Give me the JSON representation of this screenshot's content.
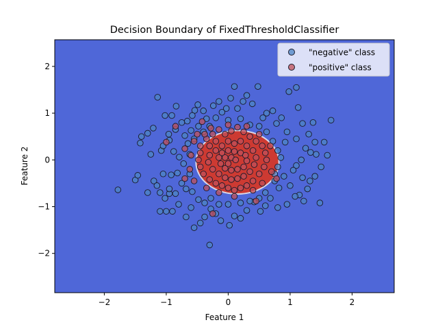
{
  "chart_data": {
    "type": "scatter",
    "title": "Decision Boundary of FixedThresholdClassifier",
    "xlabel": "Feature 1",
    "ylabel": "Feature 2",
    "xlim": [
      -2.8,
      2.68
    ],
    "ylim": [
      -2.84,
      2.57
    ],
    "xticks": [
      -2,
      -1,
      0,
      1,
      2
    ],
    "yticks": [
      -2,
      -1,
      0,
      1,
      2
    ],
    "xtick_labels": [
      "−2",
      "−1",
      "0",
      "1",
      "2"
    ],
    "ytick_labels": [
      "−2",
      "−1",
      "0",
      "1",
      "2"
    ],
    "grid": false,
    "legend_position": "top-right",
    "decision_region": {
      "shape": "ellipse",
      "center": [
        0.15,
        -0.05
      ],
      "radii": [
        0.67,
        0.68
      ],
      "inside_class": "positive",
      "inside_color": "#cd3a32",
      "outside_color": "#4f67d8",
      "boundary_color": "#d8d8e8"
    },
    "series": [
      {
        "name": "\"negative\" class",
        "color": "#4c84c4",
        "edge_color": "#1a1a2a",
        "points": [
          [
            -1.78,
            -0.64
          ],
          [
            -1.5,
            -0.43
          ],
          [
            -1.46,
            -0.33
          ],
          [
            -1.42,
            0.36
          ],
          [
            -1.4,
            0.5
          ],
          [
            -1.3,
            0.57
          ],
          [
            -1.21,
            0.68
          ],
          [
            -1.14,
            1.34
          ],
          [
            -1.08,
            0.2
          ],
          [
            -1.02,
            0.95
          ],
          [
            -0.96,
            0.55
          ],
          [
            -0.91,
            0.95
          ],
          [
            -0.84,
            1.15
          ],
          [
            -0.88,
            0.18
          ],
          [
            -0.79,
            0.06
          ],
          [
            -0.7,
            0.52
          ],
          [
            -0.66,
            0.83
          ],
          [
            -0.6,
            0.63
          ],
          [
            -0.54,
            1.06
          ],
          [
            -0.49,
            1.18
          ],
          [
            -0.4,
            1.05
          ],
          [
            -0.35,
            0.88
          ],
          [
            -0.3,
            0.72
          ],
          [
            -0.24,
            1.16
          ],
          [
            -0.15,
            1.25
          ],
          [
            -0.1,
            1.02
          ],
          [
            -0.03,
            1.1
          ],
          [
            0.04,
            1.32
          ],
          [
            0.1,
            1.57
          ],
          [
            0.15,
            1.1
          ],
          [
            0.24,
            1.25
          ],
          [
            0.3,
            1.38
          ],
          [
            0.39,
            1.2
          ],
          [
            0.48,
            1.57
          ],
          [
            0.56,
            0.9
          ],
          [
            0.62,
            1.0
          ],
          [
            0.72,
            1.05
          ],
          [
            0.78,
            0.78
          ],
          [
            0.86,
            0.9
          ],
          [
            0.95,
            0.6
          ],
          [
            0.98,
            1.46
          ],
          [
            1.1,
            1.55
          ],
          [
            1.13,
            1.12
          ],
          [
            1.2,
            0.78
          ],
          [
            1.3,
            0.55
          ],
          [
            1.37,
            0.8
          ],
          [
            1.4,
            0.38
          ],
          [
            1.55,
            0.38
          ],
          [
            1.66,
            0.85
          ],
          [
            1.42,
            0.12
          ],
          [
            1.33,
            0.16
          ],
          [
            1.25,
            0.25
          ],
          [
            1.18,
            0.0
          ],
          [
            1.1,
            -0.12
          ],
          [
            1.05,
            -0.22
          ],
          [
            1.2,
            -0.38
          ],
          [
            1.32,
            -0.45
          ],
          [
            1.4,
            -0.35
          ],
          [
            1.28,
            -0.62
          ],
          [
            1.15,
            -0.75
          ],
          [
            1.0,
            -0.55
          ],
          [
            0.9,
            -0.35
          ],
          [
            0.82,
            -0.6
          ],
          [
            0.75,
            -0.45
          ],
          [
            1.48,
            -0.92
          ],
          [
            1.08,
            -0.78
          ],
          [
            0.95,
            -0.95
          ],
          [
            0.8,
            -1.02
          ],
          [
            0.68,
            -0.82
          ],
          [
            0.6,
            -0.98
          ],
          [
            0.52,
            -1.1
          ],
          [
            0.42,
            -0.9
          ],
          [
            0.3,
            -1.08
          ],
          [
            0.2,
            -1.25
          ],
          [
            0.1,
            -1.2
          ],
          [
            0.02,
            -1.4
          ],
          [
            -0.12,
            -1.3
          ],
          [
            -0.2,
            -1.15
          ],
          [
            -0.28,
            -1.05
          ],
          [
            -0.3,
            -1.82
          ],
          [
            -0.38,
            -1.22
          ],
          [
            -0.45,
            -1.35
          ],
          [
            -0.55,
            -1.45
          ],
          [
            -0.6,
            -1.02
          ],
          [
            -0.68,
            -1.22
          ],
          [
            -0.8,
            -0.95
          ],
          [
            -0.85,
            -0.72
          ],
          [
            -0.95,
            -0.72
          ],
          [
            -1.02,
            -0.82
          ],
          [
            -1.1,
            -0.7
          ],
          [
            -1.2,
            -0.45
          ],
          [
            -1.15,
            -0.55
          ],
          [
            -1.1,
            -1.1
          ],
          [
            -1.0,
            -1.1
          ],
          [
            -0.9,
            -1.1
          ],
          [
            -0.95,
            -0.62
          ],
          [
            -1.05,
            -0.3
          ],
          [
            -0.92,
            -0.32
          ],
          [
            -0.82,
            -0.28
          ],
          [
            -0.75,
            -0.5
          ],
          [
            -0.68,
            -0.62
          ],
          [
            -0.58,
            -0.68
          ],
          [
            -0.48,
            -0.85
          ],
          [
            -0.38,
            -0.92
          ],
          [
            -0.28,
            -0.82
          ],
          [
            -1.05,
            0.3
          ],
          [
            -0.95,
            0.42
          ],
          [
            -0.85,
            0.65
          ],
          [
            -0.75,
            0.8
          ],
          [
            -0.65,
            0.35
          ],
          [
            -0.55,
            0.45
          ],
          [
            -0.48,
            0.72
          ],
          [
            -0.4,
            0.6
          ],
          [
            -0.2,
            0.9
          ],
          [
            0.0,
            0.85
          ],
          [
            0.2,
            0.88
          ],
          [
            0.35,
            0.75
          ],
          [
            0.5,
            0.72
          ],
          [
            0.62,
            0.6
          ],
          [
            0.72,
            0.4
          ],
          [
            0.8,
            0.2
          ],
          [
            0.85,
            0.05
          ],
          [
            0.8,
            -0.15
          ],
          [
            0.75,
            -0.3
          ],
          [
            0.6,
            -0.7
          ],
          [
            0.5,
            -0.82
          ],
          [
            0.35,
            -0.88
          ],
          [
            0.2,
            -0.92
          ],
          [
            0.0,
            -0.95
          ],
          [
            -0.15,
            -0.95
          ],
          [
            -0.62,
            0.12
          ],
          [
            -0.72,
            -0.08
          ],
          [
            -0.62,
            -0.3
          ],
          [
            -0.58,
            0.95
          ],
          [
            1.6,
            0.1
          ],
          [
            1.5,
            -0.15
          ],
          [
            1.1,
            0.45
          ],
          [
            1.22,
            -0.88
          ],
          [
            0.92,
            0.38
          ],
          [
            -1.25,
            0.12
          ],
          [
            -1.3,
            -0.7
          ]
        ]
      },
      {
        "name": "\"positive\" class",
        "color": "#c0505a",
        "edge_color": "#1a1a2a",
        "points": [
          [
            -1.0,
            0.38
          ],
          [
            -0.85,
            0.72
          ],
          [
            -0.7,
            0.24
          ],
          [
            -0.55,
            0.4
          ],
          [
            -0.45,
            0.3
          ],
          [
            -0.35,
            0.45
          ],
          [
            -0.25,
            0.55
          ],
          [
            -0.15,
            0.65
          ],
          [
            -0.05,
            0.55
          ],
          [
            0.05,
            0.62
          ],
          [
            0.15,
            0.7
          ],
          [
            0.25,
            0.6
          ],
          [
            0.35,
            0.5
          ],
          [
            0.45,
            0.4
          ],
          [
            0.55,
            0.3
          ],
          [
            0.6,
            0.15
          ],
          [
            0.62,
            0.0
          ],
          [
            0.58,
            -0.15
          ],
          [
            0.5,
            -0.3
          ],
          [
            0.4,
            -0.45
          ],
          [
            0.3,
            -0.55
          ],
          [
            0.2,
            -0.6
          ],
          [
            0.1,
            -0.65
          ],
          [
            0.0,
            -0.6
          ],
          [
            -0.1,
            -0.55
          ],
          [
            -0.2,
            -0.5
          ],
          [
            -0.3,
            -0.42
          ],
          [
            -0.4,
            -0.3
          ],
          [
            -0.45,
            -0.15
          ],
          [
            -0.48,
            0.0
          ],
          [
            -0.45,
            0.15
          ],
          [
            -0.3,
            0.3
          ],
          [
            -0.2,
            0.4
          ],
          [
            -0.1,
            0.3
          ],
          [
            0.0,
            0.4
          ],
          [
            0.1,
            0.35
          ],
          [
            0.2,
            0.4
          ],
          [
            0.3,
            0.3
          ],
          [
            0.4,
            0.2
          ],
          [
            0.45,
            0.05
          ],
          [
            0.42,
            -0.1
          ],
          [
            0.35,
            -0.25
          ],
          [
            0.25,
            -0.35
          ],
          [
            0.15,
            -0.4
          ],
          [
            0.05,
            -0.42
          ],
          [
            -0.05,
            -0.38
          ],
          [
            -0.15,
            -0.3
          ],
          [
            -0.25,
            -0.2
          ],
          [
            -0.32,
            -0.05
          ],
          [
            -0.3,
            0.1
          ],
          [
            -0.2,
            0.2
          ],
          [
            -0.1,
            0.15
          ],
          [
            0.0,
            0.2
          ],
          [
            0.1,
            0.18
          ],
          [
            0.2,
            0.15
          ],
          [
            0.28,
            0.1
          ],
          [
            0.3,
            -0.02
          ],
          [
            0.25,
            -0.15
          ],
          [
            0.15,
            -0.2
          ],
          [
            0.05,
            -0.22
          ],
          [
            -0.05,
            -0.18
          ],
          [
            -0.12,
            -0.08
          ],
          [
            -0.15,
            0.05
          ],
          [
            -0.05,
            0.05
          ],
          [
            0.05,
            0.05
          ],
          [
            0.12,
            0.0
          ],
          [
            0.0,
            -0.08
          ],
          [
            -0.38,
            0.55
          ],
          [
            0.5,
            0.55
          ],
          [
            0.68,
            0.3
          ],
          [
            0.7,
            -0.25
          ],
          [
            0.55,
            -0.5
          ],
          [
            0.4,
            -0.65
          ],
          [
            0.1,
            -0.78
          ],
          [
            -0.15,
            -0.7
          ],
          [
            -0.35,
            -0.6
          ],
          [
            -0.55,
            -0.45
          ],
          [
            -0.62,
            -0.2
          ],
          [
            -0.6,
            0.1
          ],
          [
            -0.5,
            0.55
          ],
          [
            -0.28,
            0.68
          ],
          [
            0.0,
            0.75
          ],
          [
            0.3,
            0.72
          ],
          [
            0.45,
            -0.88
          ],
          [
            -0.25,
            -1.15
          ],
          [
            -0.7,
            -0.4
          ],
          [
            0.78,
            -0.4
          ],
          [
            -0.42,
            0.82
          ]
        ]
      }
    ]
  }
}
